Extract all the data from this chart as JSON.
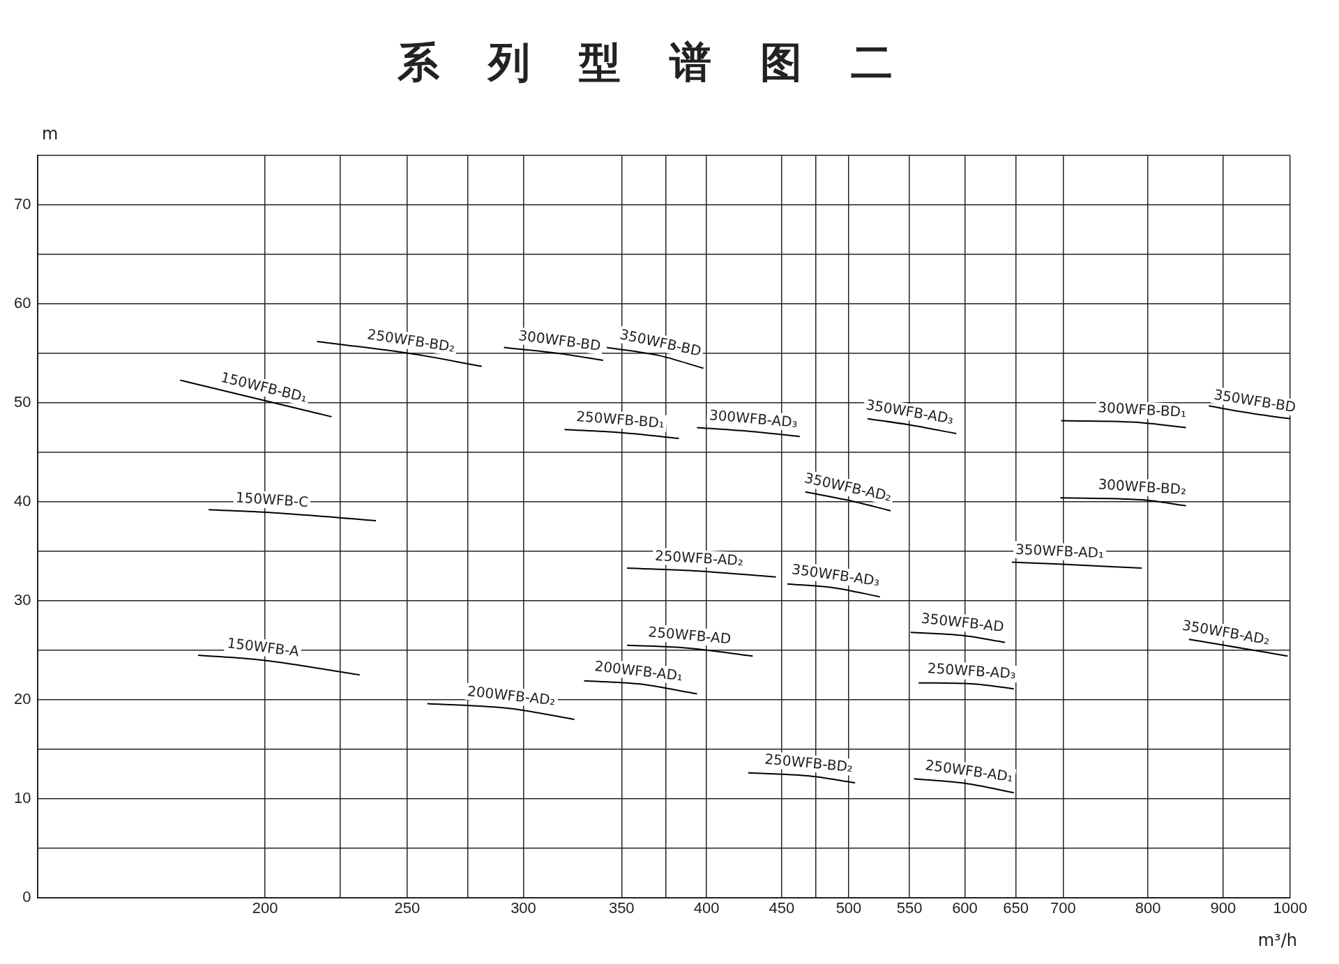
{
  "chart_data": {
    "type": "line",
    "title": "系列型谱图二",
    "xlabel": "m³/h",
    "ylabel": "m",
    "log": "x",
    "grid": true,
    "legend": false,
    "marker": "none",
    "line_style": "solid",
    "xlim": [
      140,
      1000
    ],
    "xticks": [
      200,
      {
        "value": 225,
        "label": null
      },
      250,
      {
        "value": 275,
        "label": null
      },
      300,
      350,
      {
        "value": 375,
        "label": null
      },
      400,
      450,
      {
        "value": 475,
        "label": null
      },
      500,
      550,
      600,
      650,
      700,
      800,
      900,
      1000
    ],
    "ylim": [
      0,
      75
    ],
    "yticks": [
      0,
      {
        "value": 5,
        "label": null
      },
      10,
      {
        "value": 15,
        "label": null
      },
      20,
      {
        "value": 25,
        "label": null
      },
      30,
      {
        "value": 35,
        "label": null
      },
      40,
      {
        "value": 45,
        "label": null
      },
      50,
      {
        "value": 55,
        "label": null
      },
      60,
      {
        "value": 65,
        "label": null
      },
      70,
      {
        "value": 75,
        "label": null
      }
    ],
    "series": [
      {
        "name": "150WFB-BD₁",
        "color": "#000000",
        "x": [
          175,
          199,
          222
        ],
        "values": [
          52.3,
          50.3,
          48.6
        ]
      },
      {
        "name": "250WFB-BD₂",
        "color": "#000000",
        "x": [
          217,
          251,
          281
        ],
        "values": [
          56.2,
          55.0,
          53.7
        ]
      },
      {
        "name": "300WFB-BD",
        "color": "#000000",
        "x": [
          291,
          317,
          340
        ],
        "values": [
          55.6,
          55.0,
          54.3
        ]
      },
      {
        "name": "350WFB-BD",
        "color": "#000000",
        "x": [
          342,
          371,
          398
        ],
        "values": [
          55.6,
          54.8,
          53.5
        ]
      },
      {
        "name": "250WFB-BD₁",
        "color": "#000000",
        "x": [
          320,
          349,
          383
        ],
        "values": [
          47.3,
          47.0,
          46.4
        ]
      },
      {
        "name": "300WFB-AD₃",
        "color": "#000000",
        "x": [
          394,
          430,
          463
        ],
        "values": [
          47.5,
          47.1,
          46.6
        ]
      },
      {
        "name": "350WFB-AD₃",
        "color": "#000000",
        "x": [
          515,
          549,
          592
        ],
        "values": [
          48.4,
          47.8,
          46.9
        ]
      },
      {
        "name": "300WFB-BD₁",
        "color": "#000000",
        "x": [
          698,
          792,
          849
        ],
        "values": [
          48.2,
          48.0,
          47.5
        ]
      },
      {
        "name": "350WFB-BD",
        "color": "#000000",
        "x": [
          880,
          944,
          1000
        ],
        "values": [
          49.7,
          48.9,
          48.4
        ]
      },
      {
        "name": "150WFB-C",
        "color": "#000000",
        "x": [
          183,
          202,
          238
        ],
        "values": [
          39.2,
          38.9,
          38.1
        ]
      },
      {
        "name": "350WFB-AD₂",
        "color": "#000000",
        "x": [
          467,
          498,
          534
        ],
        "values": [
          41.0,
          40.2,
          39.1
        ]
      },
      {
        "name": "300WFB-BD₂",
        "color": "#000000",
        "x": [
          697,
          792,
          849
        ],
        "values": [
          40.4,
          40.2,
          39.6
        ]
      },
      {
        "name": "250WFB-AD₂",
        "color": "#000000",
        "x": [
          353,
          395,
          446
        ],
        "values": [
          33.3,
          33.0,
          32.4
        ]
      },
      {
        "name": "350WFB-AD₃",
        "color": "#000000",
        "x": [
          454,
          489,
          525
        ],
        "values": [
          31.7,
          31.3,
          30.4
        ]
      },
      {
        "name": "350WFB-AD₁",
        "color": "#000000",
        "x": [
          646,
          696,
          792
        ],
        "values": [
          33.9,
          33.7,
          33.3
        ]
      },
      {
        "name": "350WFB-AD",
        "color": "#000000",
        "x": [
          551,
          597,
          639
        ],
        "values": [
          26.8,
          26.5,
          25.8
        ]
      },
      {
        "name": "350WFB-AD₂",
        "color": "#000000",
        "x": [
          853,
          902,
          996
        ],
        "values": [
          26.1,
          25.5,
          24.4
        ]
      },
      {
        "name": "150WFB-A",
        "color": "#000000",
        "x": [
          180,
          199,
          232
        ],
        "values": [
          24.5,
          24.0,
          22.5
        ]
      },
      {
        "name": "250WFB-AD",
        "color": "#000000",
        "x": [
          353,
          389,
          430
        ],
        "values": [
          25.5,
          25.2,
          24.4
        ]
      },
      {
        "name": "200WFB-AD₁",
        "color": "#000000",
        "x": [
          330,
          359,
          394
        ],
        "values": [
          21.9,
          21.6,
          20.6
        ]
      },
      {
        "name": "250WFB-AD₃",
        "color": "#000000",
        "x": [
          558,
          606,
          648
        ],
        "values": [
          21.7,
          21.6,
          21.1
        ]
      },
      {
        "name": "200WFB-AD₂",
        "color": "#000000",
        "x": [
          258,
          294,
          325
        ],
        "values": [
          19.6,
          19.1,
          18.0
        ]
      },
      {
        "name": "250WFB-BD₂",
        "color": "#000000",
        "x": [
          427,
          469,
          505
        ],
        "values": [
          12.6,
          12.3,
          11.6
        ]
      },
      {
        "name": "250WFB-AD₁",
        "color": "#000000",
        "x": [
          554,
          603,
          648
        ],
        "values": [
          12.0,
          11.5,
          10.6
        ]
      }
    ]
  }
}
